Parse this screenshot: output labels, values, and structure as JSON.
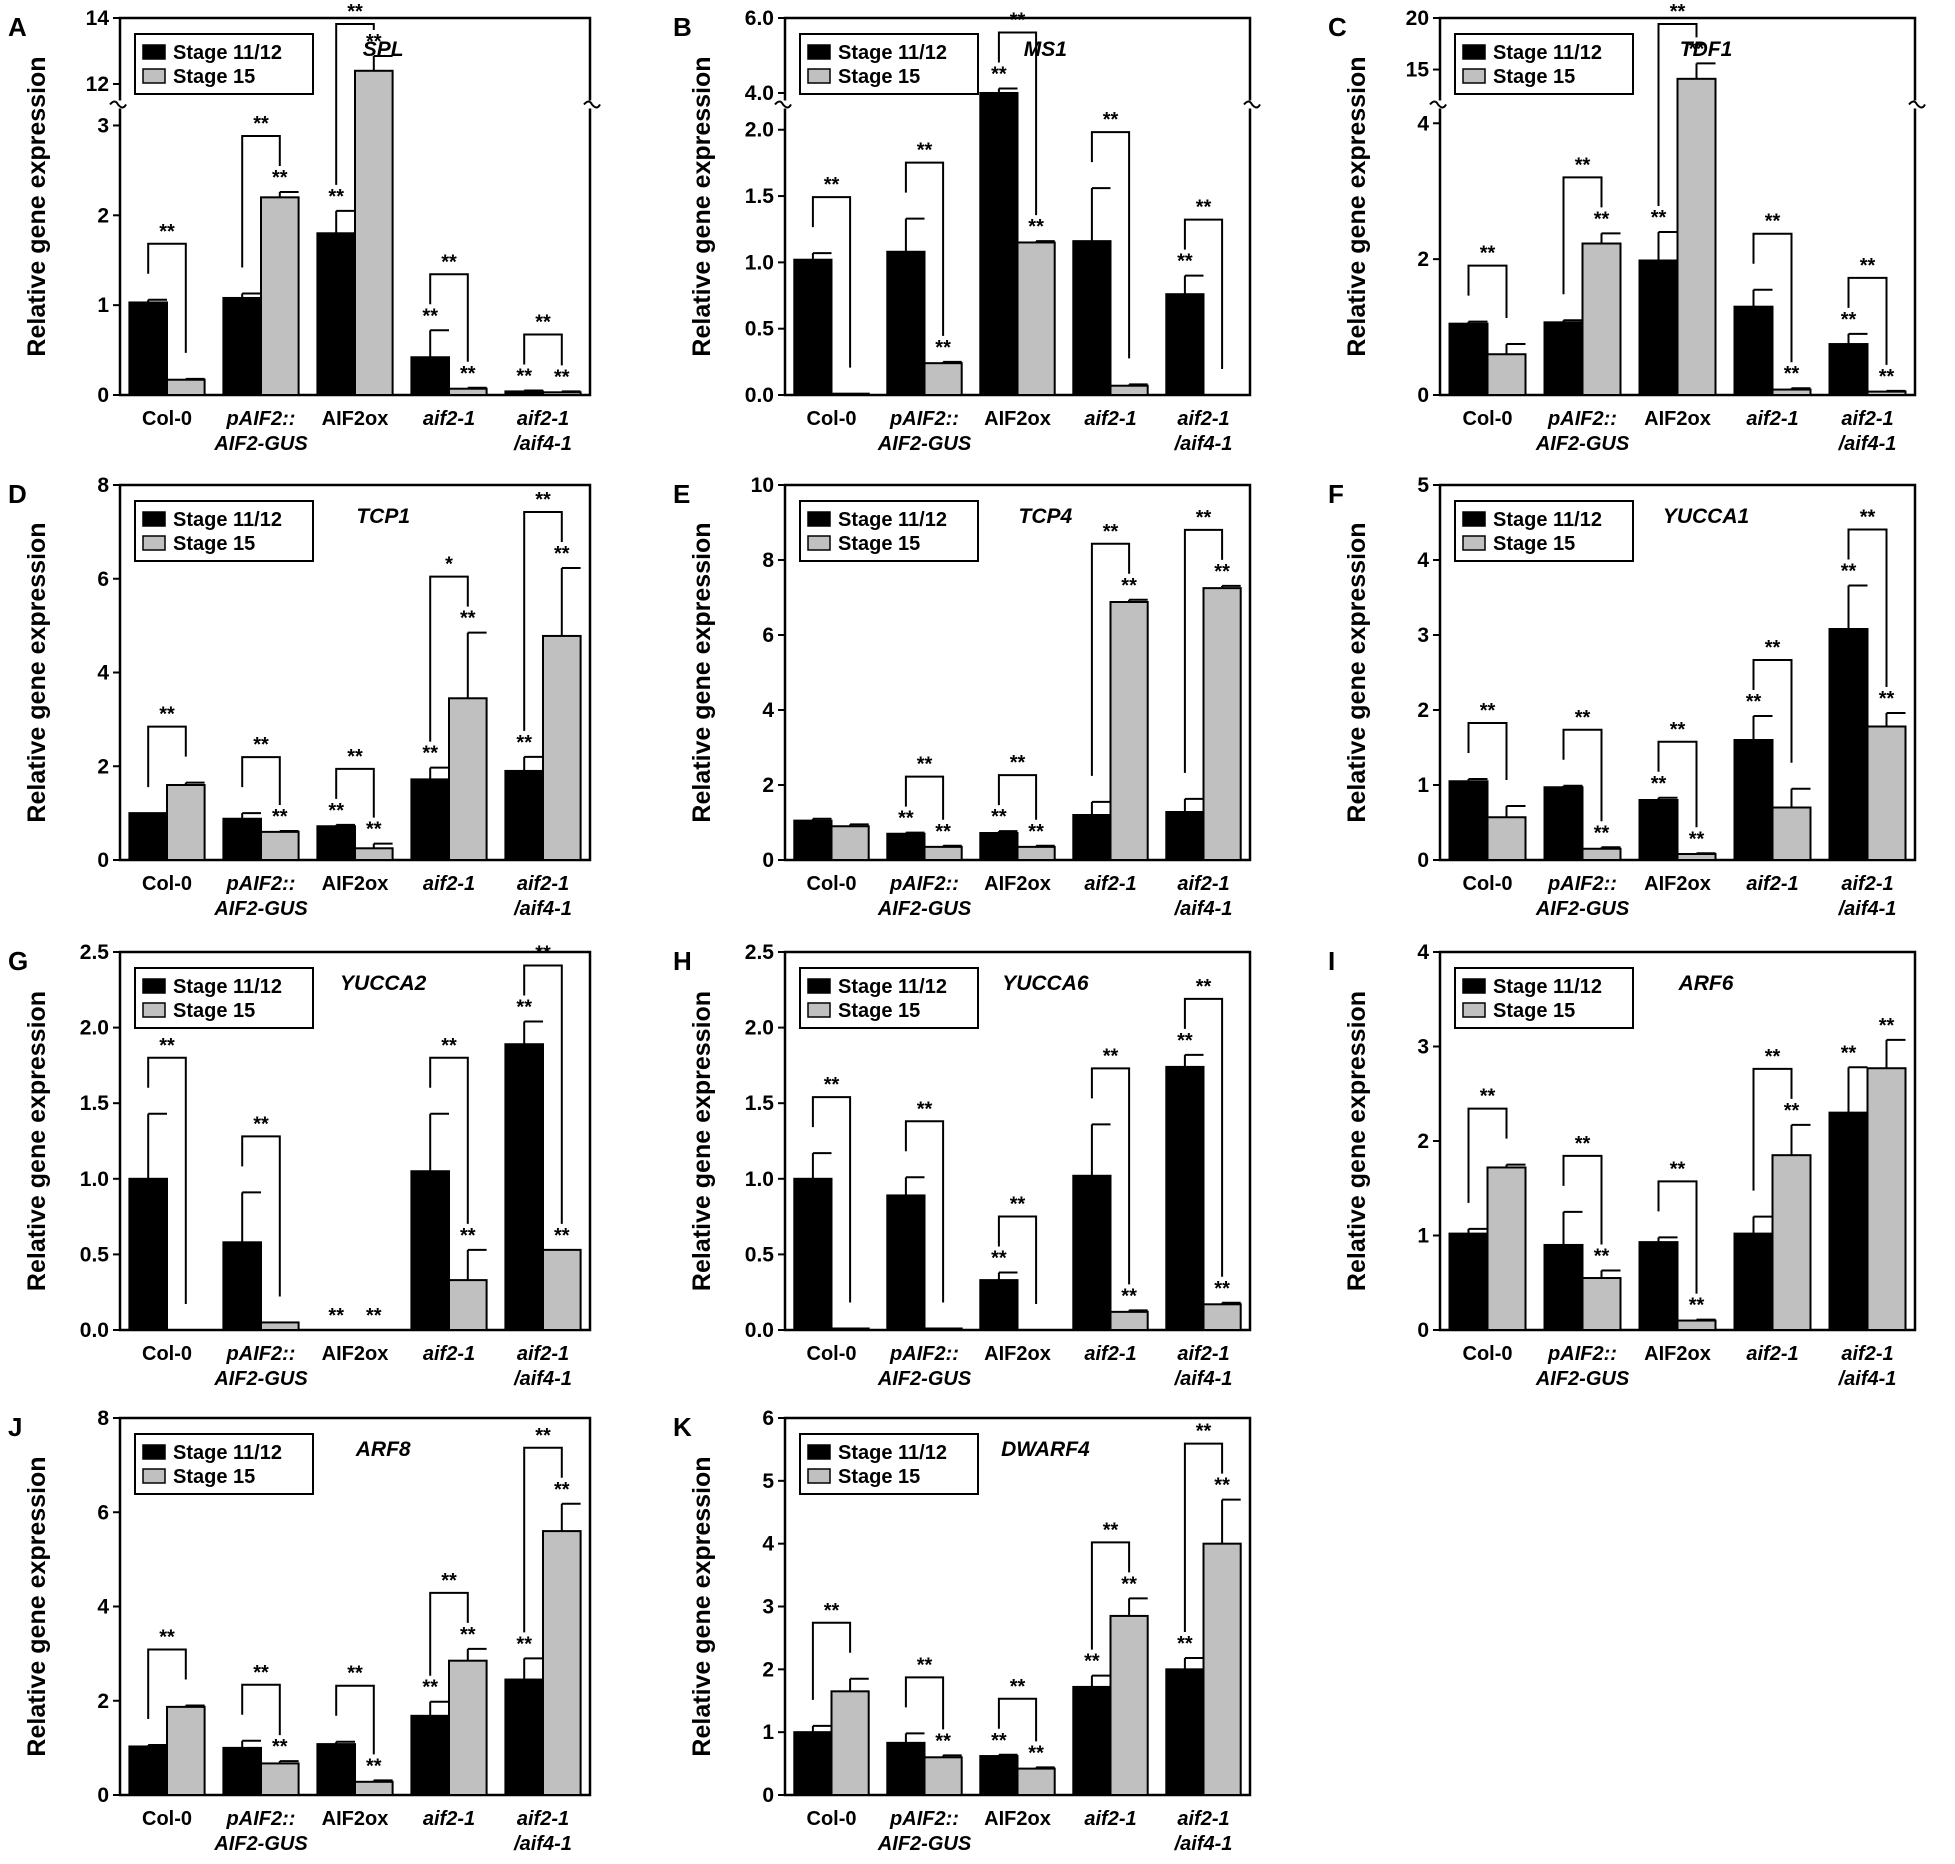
{
  "figure": {
    "y_label": "Relative gene expression",
    "categories": [
      [
        "Col-0"
      ],
      [
        "pAIF2::",
        "AIF2-GUS"
      ],
      [
        "AIF2ox"
      ],
      [
        "aif2-1"
      ],
      [
        "aif2-1",
        "/aif4-1"
      ]
    ],
    "categories_italic": [
      false,
      true,
      false,
      true,
      true
    ],
    "legend": [
      "Stage 11/12",
      "Stage 15"
    ],
    "colors": {
      "stage_11_12": "#000000",
      "stage_15": "#c0c0c0",
      "axis": "#000000"
    }
  },
  "chart_data": [
    {
      "letter": "A",
      "gene": "SPL",
      "type": "bar",
      "categories": [
        "Col-0",
        "pAIF2::AIF2-GUS",
        "AIF2ox",
        "aif2-1",
        "aif2-1/aif4-1"
      ],
      "ylim": [
        0,
        14
      ],
      "yticks": [
        "0",
        "1",
        "2",
        "3",
        "12",
        "14"
      ],
      "broken_axis": {
        "lower": [
          0,
          3.1
        ],
        "upper": [
          11.5,
          14
        ]
      },
      "series": [
        {
          "name": "Stage 11/12",
          "values": [
            1.03,
            1.08,
            1.8,
            0.42,
            0.04
          ],
          "errors": [
            0.03,
            0.05,
            0.25,
            0.3,
            0.01
          ],
          "sig": [
            "",
            "",
            "**",
            "**",
            "**"
          ]
        },
        {
          "name": "Stage 15",
          "values": [
            0.17,
            2.2,
            12.4,
            0.07,
            0.03
          ],
          "errors": [
            0.01,
            0.06,
            0.45,
            0.01,
            0.01
          ],
          "sig": [
            "",
            "**",
            "**",
            "**",
            "**"
          ]
        }
      ],
      "brackets": [
        "**",
        "**",
        "**",
        "**",
        "**"
      ]
    },
    {
      "letter": "B",
      "gene": "MS1",
      "type": "bar",
      "categories": [
        "Col-0",
        "pAIF2::AIF2-GUS",
        "AIF2ox",
        "aif2-1",
        "aif2-1/aif4-1"
      ],
      "ylim": [
        0,
        6.0
      ],
      "yticks": [
        "0.0",
        "0.5",
        "1.0",
        "1.5",
        "2.0",
        "4.0",
        "6.0"
      ],
      "broken_axis": {
        "lower": [
          0,
          2.1
        ],
        "upper": [
          3.8,
          6.0
        ]
      },
      "series": [
        {
          "name": "Stage 11/12",
          "values": [
            1.02,
            1.08,
            4.0,
            1.16,
            0.76
          ],
          "errors": [
            0.05,
            0.25,
            0.12,
            0.4,
            0.14
          ],
          "sig": [
            "",
            "",
            "**",
            "",
            "**"
          ]
        },
        {
          "name": "Stage 15",
          "values": [
            0.01,
            0.24,
            1.15,
            0.07,
            0.0
          ],
          "errors": [
            0,
            0.01,
            0.01,
            0.01,
            0
          ],
          "sig": [
            "",
            "**",
            "**",
            "",
            ""
          ]
        }
      ],
      "brackets": [
        "**",
        "**",
        "**",
        "**",
        "**"
      ]
    },
    {
      "letter": "C",
      "gene": "TDF1",
      "type": "bar",
      "categories": [
        "Col-0",
        "pAIF2::AIF2-GUS",
        "AIF2ox",
        "aif2-1",
        "aif2-1/aif4-1"
      ],
      "ylim": [
        0,
        20
      ],
      "yticks": [
        "0",
        "2",
        "4",
        "15",
        "20"
      ],
      "broken_axis": {
        "lower": [
          0,
          4.1
        ],
        "upper": [
          12,
          20
        ]
      },
      "series": [
        {
          "name": "Stage 11/12",
          "values": [
            1.05,
            1.07,
            1.98,
            1.3,
            0.75
          ],
          "errors": [
            0.03,
            0.03,
            0.42,
            0.25,
            0.15
          ],
          "sig": [
            "",
            "",
            "**",
            "",
            "**"
          ]
        },
        {
          "name": "Stage 15",
          "values": [
            0.6,
            2.23,
            14.1,
            0.08,
            0.05
          ],
          "errors": [
            0.15,
            0.15,
            1.5,
            0.02,
            0.01
          ],
          "sig": [
            "",
            "**",
            "**",
            "**",
            "**"
          ]
        }
      ],
      "brackets": [
        "**",
        "**",
        "**",
        "**",
        "**"
      ]
    },
    {
      "letter": "D",
      "gene": "TCP1",
      "type": "bar",
      "categories": [
        "Col-0",
        "pAIF2::AIF2-GUS",
        "AIF2ox",
        "aif2-1",
        "aif2-1/aif4-1"
      ],
      "ylim": [
        0,
        8
      ],
      "yticks": [
        "0",
        "2",
        "4",
        "6",
        "8"
      ],
      "series": [
        {
          "name": "Stage 11/12",
          "values": [
            1.0,
            0.88,
            0.72,
            1.72,
            1.9
          ],
          "errors": [
            0,
            0.12,
            0.03,
            0.25,
            0.3
          ],
          "sig": [
            "",
            "",
            "**",
            "**",
            "**"
          ]
        },
        {
          "name": "Stage 15",
          "values": [
            1.6,
            0.6,
            0.25,
            3.45,
            4.78
          ],
          "errors": [
            0.05,
            0.02,
            0.1,
            1.4,
            1.45
          ],
          "sig": [
            "",
            "**",
            "**",
            "**",
            "**"
          ]
        }
      ],
      "brackets": [
        "**",
        "**",
        "**",
        "*",
        "**"
      ]
    },
    {
      "letter": "E",
      "gene": "TCP4",
      "type": "bar",
      "categories": [
        "Col-0",
        "pAIF2::AIF2-GUS",
        "AIF2ox",
        "aif2-1",
        "aif2-1/aif4-1"
      ],
      "ylim": [
        0,
        10
      ],
      "yticks": [
        "0",
        "2",
        "4",
        "6",
        "8",
        "10"
      ],
      "series": [
        {
          "name": "Stage 11/12",
          "values": [
            1.05,
            0.7,
            0.72,
            1.2,
            1.28
          ],
          "errors": [
            0.05,
            0.03,
            0.05,
            0.35,
            0.35
          ],
          "sig": [
            "",
            "**",
            "**",
            "",
            ""
          ]
        },
        {
          "name": "Stage 15",
          "values": [
            0.9,
            0.35,
            0.35,
            6.88,
            7.25
          ],
          "errors": [
            0.05,
            0.03,
            0.03,
            0.06,
            0.06
          ],
          "sig": [
            "",
            "**",
            "**",
            "**",
            "**"
          ]
        }
      ],
      "brackets": [
        "",
        "**",
        "**",
        "**",
        "**"
      ]
    },
    {
      "letter": "F",
      "gene": "YUCCA1",
      "type": "bar",
      "categories": [
        "Col-0",
        "pAIF2::AIF2-GUS",
        "AIF2ox",
        "aif2-1",
        "aif2-1/aif4-1"
      ],
      "ylim": [
        0,
        5
      ],
      "yticks": [
        "0",
        "1",
        "2",
        "3",
        "4",
        "5"
      ],
      "series": [
        {
          "name": "Stage 11/12",
          "values": [
            1.05,
            0.97,
            0.8,
            1.6,
            3.08
          ],
          "errors": [
            0.03,
            0.02,
            0.03,
            0.32,
            0.58
          ],
          "sig": [
            "",
            "",
            "**",
            "**",
            "**"
          ]
        },
        {
          "name": "Stage 15",
          "values": [
            0.57,
            0.15,
            0.08,
            0.7,
            1.78
          ],
          "errors": [
            0.15,
            0.02,
            0.01,
            0.25,
            0.18
          ],
          "sig": [
            "",
            "**",
            "**",
            "",
            "**"
          ]
        }
      ],
      "brackets": [
        "**",
        "**",
        "**",
        "**",
        "**"
      ]
    },
    {
      "letter": "G",
      "gene": "YUCCA2",
      "type": "bar",
      "categories": [
        "Col-0",
        "pAIF2::AIF2-GUS",
        "AIF2ox",
        "aif2-1",
        "aif2-1/aif4-1"
      ],
      "ylim": [
        0,
        2.5
      ],
      "yticks": [
        "0.0",
        "0.5",
        "1.0",
        "1.5",
        "2.0",
        "2.5"
      ],
      "series": [
        {
          "name": "Stage 11/12",
          "values": [
            1.0,
            0.58,
            0.0,
            1.05,
            1.89
          ],
          "errors": [
            0.43,
            0.33,
            0,
            0.38,
            0.15
          ],
          "sig": [
            "",
            "",
            "**",
            "",
            "**"
          ]
        },
        {
          "name": "Stage 15",
          "values": [
            0.0,
            0.05,
            0.0,
            0.33,
            0.53
          ],
          "errors": [
            0,
            0,
            0,
            0.2,
            0.0
          ],
          "sig": [
            "",
            "",
            "**",
            "**",
            "**"
          ]
        }
      ],
      "brackets": [
        "**",
        "**",
        "",
        "**",
        "**"
      ]
    },
    {
      "letter": "H",
      "gene": "YUCCA6",
      "type": "bar",
      "categories": [
        "Col-0",
        "pAIF2::AIF2-GUS",
        "AIF2ox",
        "aif2-1",
        "aif2-1/aif4-1"
      ],
      "ylim": [
        0,
        2.5
      ],
      "yticks": [
        "0.0",
        "0.5",
        "1.0",
        "1.5",
        "2.0",
        "2.5"
      ],
      "series": [
        {
          "name": "Stage 11/12",
          "values": [
            1.0,
            0.89,
            0.33,
            1.02,
            1.74
          ],
          "errors": [
            0.17,
            0.12,
            0.05,
            0.34,
            0.08
          ],
          "sig": [
            "",
            "",
            "**",
            "",
            "**"
          ]
        },
        {
          "name": "Stage 15",
          "values": [
            0.01,
            0.01,
            0.0,
            0.12,
            0.17
          ],
          "errors": [
            0,
            0,
            0,
            0.01,
            0.01
          ],
          "sig": [
            "",
            "",
            "",
            "**",
            "**"
          ]
        }
      ],
      "brackets": [
        "**",
        "**",
        "**",
        "**",
        "**"
      ]
    },
    {
      "letter": "I",
      "gene": "ARF6",
      "type": "bar",
      "categories": [
        "Col-0",
        "pAIF2::AIF2-GUS",
        "AIF2ox",
        "aif2-1",
        "aif2-1/aif4-1"
      ],
      "ylim": [
        0,
        4
      ],
      "yticks": [
        "0",
        "1",
        "2",
        "3",
        "4"
      ],
      "series": [
        {
          "name": "Stage 11/12",
          "values": [
            1.02,
            0.9,
            0.93,
            1.02,
            2.3
          ],
          "errors": [
            0.05,
            0.35,
            0.05,
            0.18,
            0.48
          ],
          "sig": [
            "",
            "",
            "",
            "",
            "**"
          ]
        },
        {
          "name": "Stage 15",
          "values": [
            1.72,
            0.55,
            0.1,
            1.85,
            2.77
          ],
          "errors": [
            0.03,
            0.08,
            0.01,
            0.32,
            0.3
          ],
          "sig": [
            "",
            "**",
            "**",
            "**",
            "**"
          ]
        }
      ],
      "brackets": [
        "**",
        "**",
        "**",
        "**",
        ""
      ]
    },
    {
      "letter": "J",
      "gene": "ARF8",
      "type": "bar",
      "categories": [
        "Col-0",
        "pAIF2::AIF2-GUS",
        "AIF2ox",
        "aif2-1",
        "aif2-1/aif4-1"
      ],
      "ylim": [
        0,
        8
      ],
      "yticks": [
        "0",
        "2",
        "4",
        "6",
        "8"
      ],
      "series": [
        {
          "name": "Stage 11/12",
          "values": [
            1.03,
            1.0,
            1.08,
            1.68,
            2.45
          ],
          "errors": [
            0.03,
            0.15,
            0.05,
            0.3,
            0.45
          ],
          "sig": [
            "",
            "",
            "",
            "**",
            "**"
          ]
        },
        {
          "name": "Stage 15",
          "values": [
            1.87,
            0.67,
            0.28,
            2.85,
            5.6
          ],
          "errors": [
            0.03,
            0.05,
            0.03,
            0.25,
            0.58
          ],
          "sig": [
            "",
            "**",
            "**",
            "**",
            "**"
          ]
        }
      ],
      "brackets": [
        "**",
        "**",
        "**",
        "**",
        "**"
      ]
    },
    {
      "letter": "K",
      "gene": "DWARF4",
      "type": "bar",
      "categories": [
        "Col-0",
        "pAIF2::AIF2-GUS",
        "AIF2ox",
        "aif2-1",
        "aif2-1/aif4-1"
      ],
      "ylim": [
        0,
        6
      ],
      "yticks": [
        "0",
        "1",
        "2",
        "3",
        "4",
        "5",
        "6"
      ],
      "series": [
        {
          "name": "Stage 11/12",
          "values": [
            1.0,
            0.83,
            0.62,
            1.72,
            2.0
          ],
          "errors": [
            0.1,
            0.15,
            0.02,
            0.18,
            0.18
          ],
          "sig": [
            "",
            "",
            "**",
            "**",
            "**"
          ]
        },
        {
          "name": "Stage 15",
          "values": [
            1.65,
            0.6,
            0.42,
            2.85,
            4.0
          ],
          "errors": [
            0.2,
            0.03,
            0.02,
            0.28,
            0.7
          ],
          "sig": [
            "",
            "**",
            "**",
            "**",
            "**"
          ]
        }
      ],
      "brackets": [
        "**",
        "**",
        "**",
        "**",
        "**"
      ]
    }
  ]
}
